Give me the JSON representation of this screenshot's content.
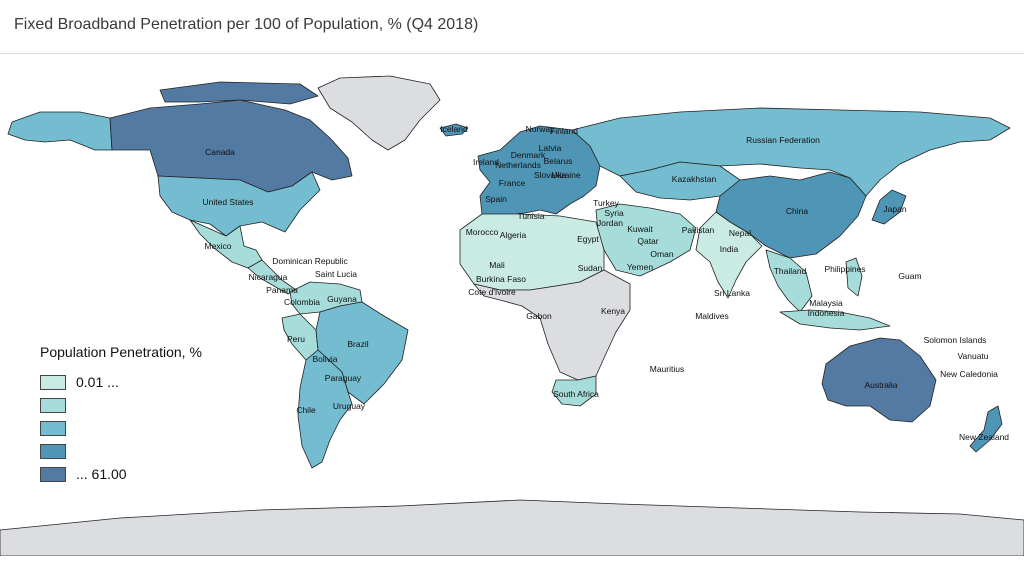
{
  "title": "Fixed Broadband Penetration per 100 of Population, % (Q4 2018)",
  "legend": {
    "title": "Population Penetration, %",
    "items": [
      {
        "label": "0.01 ...",
        "color": "#c9ebe3"
      },
      {
        "label": "",
        "color": "#a6dcd9"
      },
      {
        "label": "",
        "color": "#74bccf"
      },
      {
        "label": "",
        "color": "#4f96b6"
      },
      {
        "label": "... 61.00",
        "color": "#537aa2"
      }
    ]
  },
  "colors": {
    "no_data": "#dcdde1",
    "ocean": "#ffffff",
    "border": "#222222"
  },
  "regions": [
    {
      "name": "Canada",
      "tier": 5
    },
    {
      "name": "United States",
      "tier": 3
    },
    {
      "name": "Mexico",
      "tier": 2
    },
    {
      "name": "Greenland",
      "tier": 0
    },
    {
      "name": "Alaska",
      "tier": 3
    },
    {
      "name": "Colombia",
      "tier": 2
    },
    {
      "name": "Brazil",
      "tier": 3
    },
    {
      "name": "Argentina",
      "tier": 3
    },
    {
      "name": "Chile",
      "tier": 3
    },
    {
      "name": "Peru",
      "tier": 2
    },
    {
      "name": "Europe",
      "tier": 4
    },
    {
      "name": "Russian Federation",
      "tier": 3
    },
    {
      "name": "Kazakhstan",
      "tier": 3
    },
    {
      "name": "China",
      "tier": 4
    },
    {
      "name": "India",
      "tier": 1
    },
    {
      "name": "Australia",
      "tier": 5
    },
    {
      "name": "New Zealand",
      "tier": 4
    },
    {
      "name": "North Africa",
      "tier": 1
    },
    {
      "name": "Sub-Saharan Africa",
      "tier": 0
    },
    {
      "name": "South Africa",
      "tier": 2
    },
    {
      "name": "Middle East",
      "tier": 2
    },
    {
      "name": "Southeast Asia",
      "tier": 2
    },
    {
      "name": "Japan",
      "tier": 4
    },
    {
      "name": "Antarctica",
      "tier": 0
    }
  ],
  "labels": [
    "Canada",
    "United States",
    "Mexico",
    "Dominican Republic",
    "Saint Lucia",
    "Nicaragua",
    "Panama",
    "Colombia",
    "Guyana",
    "Peru",
    "Brazil",
    "Bolivia",
    "Paraguay",
    "Chile",
    "Uruguay",
    "Russian Federation",
    "Kazakhstan",
    "China",
    "Japan",
    "India",
    "Nepal",
    "Pakistan",
    "Sri Lanka",
    "Maldives",
    "Thailand",
    "Philippines",
    "Guam",
    "Malaysia",
    "Indonesia",
    "Australia",
    "Solomon Islands",
    "Vanuatu",
    "New Caledonia",
    "New Zealand",
    "Morocco",
    "Algeria",
    "Tunisia",
    "Egypt",
    "Sudan",
    "Mali",
    "Burkina Faso",
    "Cote d'Ivoire",
    "Gabon",
    "Kenya",
    "South Africa",
    "Mauritius",
    "Turkey",
    "Syria",
    "Jordan",
    "Kuwait",
    "Qatar",
    "Oman",
    "Yemen",
    "Ukraine",
    "Belarus",
    "Latvia",
    "Finland",
    "Norway",
    "Denmark",
    "Netherlands",
    "Ireland",
    "France",
    "Spain",
    "Slovakia",
    "Iceland"
  ]
}
